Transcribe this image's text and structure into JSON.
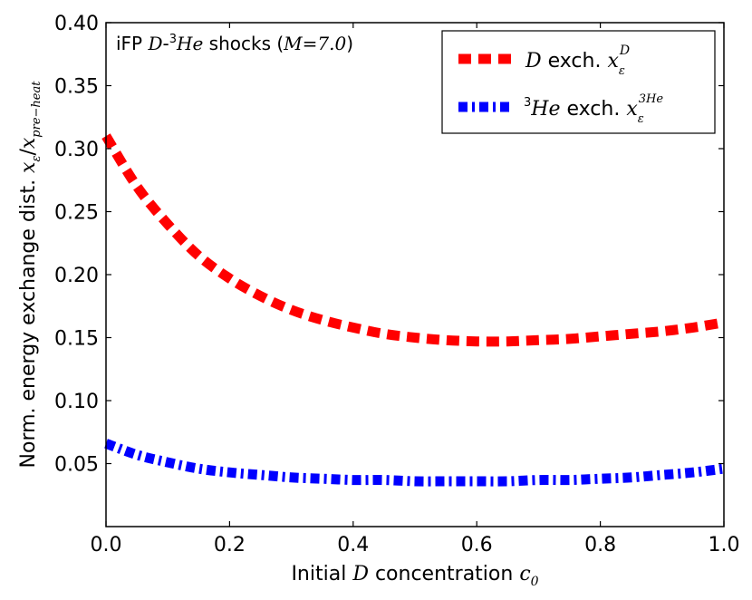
{
  "chart_data": {
    "type": "line",
    "xlabel": {
      "pre": "Initial ",
      "var": "D",
      "post": " concentration ",
      "sym": "c",
      "sub": "0"
    },
    "ylabel": {
      "pre": "Norm. energy exchange dist. ",
      "sym": "x",
      "sub_num": "ε",
      "sep": "/",
      "sym2": "x",
      "sub_den": "pre−heat"
    },
    "annotation": {
      "pre": "iFP ",
      "var1": "D",
      "dash": "-",
      "sup": "3",
      "var2": "He",
      "mid": " shocks (",
      "m": "M",
      "eq": "=7.0",
      "close": ")"
    },
    "xlim": [
      0.0,
      1.0
    ],
    "ylim": [
      0.0,
      0.4
    ],
    "xticks": [
      "0.0",
      "0.2",
      "0.4",
      "0.6",
      "0.8",
      "1.0"
    ],
    "yticks": [
      "0.05",
      "0.10",
      "0.15",
      "0.20",
      "0.25",
      "0.30",
      "0.35",
      "0.40"
    ],
    "legend_position": "top-right",
    "series": [
      {
        "name": "D exch.",
        "legend": {
          "var": "D",
          "text": " exch. ",
          "sym": "x",
          "sub": "ε",
          "sup": "D"
        },
        "color": "#ff0000",
        "style": "dashed",
        "x": [
          0.0,
          0.05,
          0.1,
          0.15,
          0.2,
          0.25,
          0.3,
          0.35,
          0.4,
          0.45,
          0.5,
          0.55,
          0.6,
          0.65,
          0.7,
          0.75,
          0.8,
          0.85,
          0.9,
          0.95,
          1.0
        ],
        "values": [
          0.31,
          0.27,
          0.24,
          0.215,
          0.197,
          0.183,
          0.172,
          0.164,
          0.158,
          0.153,
          0.15,
          0.148,
          0.147,
          0.147,
          0.148,
          0.149,
          0.151,
          0.153,
          0.155,
          0.158,
          0.162
        ]
      },
      {
        "name": "3He exch.",
        "legend": {
          "sup_pre": "3",
          "var": "He",
          "text": " exch. ",
          "sym": "x",
          "sub": "ε",
          "sup": "3He"
        },
        "color": "#0000ff",
        "style": "dashdot",
        "x": [
          0.0,
          0.05,
          0.1,
          0.15,
          0.2,
          0.25,
          0.3,
          0.35,
          0.4,
          0.45,
          0.5,
          0.55,
          0.6,
          0.65,
          0.7,
          0.75,
          0.8,
          0.85,
          0.9,
          0.95,
          1.0
        ],
        "values": [
          0.066,
          0.057,
          0.051,
          0.046,
          0.043,
          0.041,
          0.039,
          0.038,
          0.037,
          0.037,
          0.036,
          0.036,
          0.036,
          0.036,
          0.037,
          0.037,
          0.038,
          0.039,
          0.041,
          0.043,
          0.046
        ]
      }
    ]
  }
}
